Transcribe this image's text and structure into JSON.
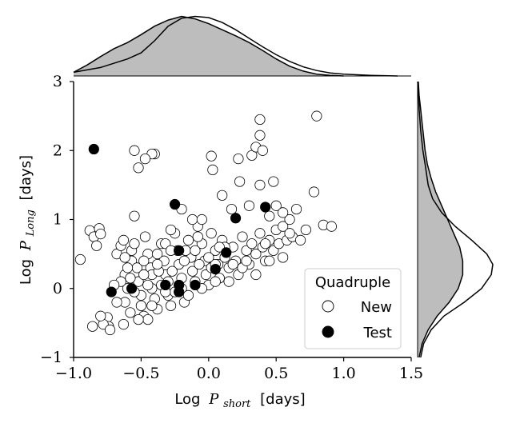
{
  "chart_data": {
    "type": "scatter",
    "xlabel_prefix": "Log",
    "xlabel_var": "P",
    "xlabel_sub": "short",
    "xlabel_unit": "[days]",
    "ylabel_prefix": "Log",
    "ylabel_var": "P",
    "ylabel_sub": "Long",
    "ylabel_unit": "[days]",
    "xlim": [
      -1.0,
      1.5
    ],
    "ylim": [
      -1,
      3
    ],
    "xticks": [
      "−1.0",
      "−0.5",
      "0.0",
      "0.5",
      "1.0",
      "1.5"
    ],
    "yticks": [
      "−1",
      "0",
      "1",
      "2",
      "3"
    ],
    "xtick_values": [
      -1.0,
      -0.5,
      0.0,
      0.5,
      1.0,
      1.5
    ],
    "ytick_values": [
      -1,
      0,
      1,
      2,
      3
    ],
    "legend": {
      "title": "Quadruple",
      "position": "lower-right",
      "entries": [
        {
          "label": "New",
          "marker": "open-circle"
        },
        {
          "label": "Test",
          "marker": "filled-circle"
        }
      ]
    },
    "series": [
      {
        "name": "New",
        "color": "#ffffff",
        "edge": "#000000",
        "points": [
          [
            -0.95,
            0.42
          ],
          [
            -0.88,
            0.84
          ],
          [
            -0.85,
            0.75
          ],
          [
            -0.83,
            0.62
          ],
          [
            -0.81,
            0.87
          ],
          [
            -0.8,
            0.79
          ],
          [
            -0.75,
            -0.42
          ],
          [
            -0.74,
            -0.55
          ],
          [
            -0.78,
            -0.52
          ],
          [
            -0.86,
            -0.55
          ],
          [
            -0.8,
            -0.4
          ],
          [
            -0.73,
            -0.6
          ],
          [
            -0.68,
            0.5
          ],
          [
            -0.65,
            0.62
          ],
          [
            -0.63,
            0.7
          ],
          [
            -0.62,
            0.2
          ],
          [
            -0.6,
            0.0
          ],
          [
            -0.62,
            -0.2
          ],
          [
            -0.63,
            -0.52
          ],
          [
            -0.58,
            -0.35
          ],
          [
            -0.57,
            0.4
          ],
          [
            -0.57,
            0.55
          ],
          [
            -0.55,
            0.65
          ],
          [
            -0.53,
            0.3
          ],
          [
            -0.52,
            0.1
          ],
          [
            -0.5,
            -0.1
          ],
          [
            -0.5,
            -0.25
          ],
          [
            -0.48,
            -0.4
          ],
          [
            -0.55,
            -0.05
          ],
          [
            -0.47,
            0.75
          ],
          [
            -0.45,
            0.5
          ],
          [
            -0.43,
            0.3
          ],
          [
            -0.42,
            0.2
          ],
          [
            -0.42,
            0.0
          ],
          [
            -0.4,
            -0.15
          ],
          [
            -0.38,
            -0.3
          ],
          [
            -0.45,
            -0.45
          ],
          [
            -0.35,
            0.65
          ],
          [
            -0.33,
            0.4
          ],
          [
            -0.32,
            0.2
          ],
          [
            -0.3,
            0.1
          ],
          [
            -0.3,
            -0.1
          ],
          [
            -0.28,
            -0.25
          ],
          [
            -0.25,
            0.8
          ],
          [
            -0.23,
            0.55
          ],
          [
            -0.22,
            0.35
          ],
          [
            -0.2,
            0.15
          ],
          [
            -0.2,
            0.0
          ],
          [
            -0.18,
            -0.2
          ],
          [
            -0.15,
            0.7
          ],
          [
            -0.13,
            0.45
          ],
          [
            -0.12,
            0.25
          ],
          [
            -0.1,
            0.1
          ],
          [
            -0.08,
            0.9
          ],
          [
            -0.05,
            0.65
          ],
          [
            -0.03,
            0.4
          ],
          [
            -0.02,
            0.2
          ],
          [
            0.0,
            0.05
          ],
          [
            0.02,
            0.8
          ],
          [
            0.05,
            0.55
          ],
          [
            0.07,
            0.35
          ],
          [
            0.08,
            0.15
          ],
          [
            0.1,
            0.7
          ],
          [
            0.12,
            0.45
          ],
          [
            0.15,
            0.3
          ],
          [
            0.18,
            0.6
          ],
          [
            0.2,
            0.4
          ],
          [
            0.22,
            0.2
          ],
          [
            0.25,
            0.75
          ],
          [
            0.28,
            0.55
          ],
          [
            0.3,
            0.35
          ],
          [
            0.32,
            0.65
          ],
          [
            0.35,
            0.5
          ],
          [
            0.38,
            0.8
          ],
          [
            0.4,
            0.6
          ],
          [
            0.42,
            0.4
          ],
          [
            0.45,
            0.7
          ],
          [
            0.48,
            0.55
          ],
          [
            0.5,
            0.85
          ],
          [
            0.52,
            0.65
          ],
          [
            0.55,
            0.9
          ],
          [
            0.58,
            0.7
          ],
          [
            0.6,
            1.0
          ],
          [
            0.62,
            0.75
          ],
          [
            0.65,
            1.15
          ],
          [
            0.68,
            0.7
          ],
          [
            0.72,
            0.85
          ],
          [
            0.78,
            1.4
          ],
          [
            0.85,
            0.92
          ],
          [
            0.91,
            0.9
          ],
          [
            -0.4,
            1.95
          ],
          [
            -0.42,
            1.95
          ],
          [
            -0.55,
            2.0
          ],
          [
            -0.52,
            1.75
          ],
          [
            -0.47,
            1.88
          ],
          [
            -0.55,
            1.05
          ],
          [
            0.02,
            1.92
          ],
          [
            0.03,
            1.72
          ],
          [
            0.22,
            1.88
          ],
          [
            0.32,
            1.93
          ],
          [
            0.35,
            2.05
          ],
          [
            0.38,
            2.22
          ],
          [
            0.4,
            2.0
          ],
          [
            0.38,
            2.45
          ],
          [
            0.48,
            1.55
          ],
          [
            0.38,
            1.5
          ],
          [
            0.23,
            1.55
          ],
          [
            0.1,
            1.35
          ],
          [
            0.17,
            1.15
          ],
          [
            0.3,
            1.2
          ],
          [
            0.45,
            1.05
          ],
          [
            0.5,
            1.2
          ],
          [
            0.55,
            1.1
          ],
          [
            0.6,
            0.8
          ],
          [
            0.8,
            2.5
          ],
          [
            -0.2,
            1.15
          ],
          [
            -0.12,
            1.0
          ],
          [
            -0.05,
            1.0
          ],
          [
            -0.28,
            0.85
          ],
          [
            -0.32,
            0.65
          ],
          [
            -0.38,
            0.5
          ],
          [
            -0.37,
            0.25
          ],
          [
            -0.27,
            0.25
          ],
          [
            -0.17,
            0.55
          ],
          [
            -0.07,
            0.35
          ],
          [
            0.02,
            0.3
          ],
          [
            0.05,
            0.1
          ],
          [
            0.15,
            0.1
          ],
          [
            0.25,
            0.3
          ],
          [
            0.35,
            0.2
          ],
          [
            0.45,
            0.4
          ],
          [
            0.55,
            0.45
          ],
          [
            -0.62,
            0.45
          ],
          [
            -0.6,
            0.3
          ],
          [
            -0.65,
            0.1
          ],
          [
            -0.58,
            0.15
          ],
          [
            -0.48,
            0.2
          ],
          [
            -0.45,
            0.05
          ],
          [
            -0.35,
            0.05
          ],
          [
            -0.25,
            -0.05
          ],
          [
            -0.15,
            -0.1
          ],
          [
            -0.05,
            0.0
          ],
          [
            0.05,
            0.35
          ],
          [
            0.12,
            0.6
          ],
          [
            -0.32,
            -0.05
          ],
          [
            -0.42,
            -0.25
          ],
          [
            -0.52,
            -0.45
          ],
          [
            -0.68,
            -0.2
          ],
          [
            -0.7,
            0.05
          ],
          [
            -0.1,
            0.55
          ],
          [
            0.0,
            0.45
          ],
          [
            0.08,
            0.6
          ],
          [
            0.18,
            0.35
          ],
          [
            0.28,
            0.4
          ],
          [
            0.42,
            0.65
          ],
          [
            -0.08,
            0.75
          ],
          [
            -0.18,
            0.4
          ],
          [
            -0.28,
            0.55
          ],
          [
            -0.38,
            0.35
          ],
          [
            -0.48,
            0.4
          ]
        ]
      },
      {
        "name": "Test",
        "color": "#000000",
        "edge": "#000000",
        "points": [
          [
            -0.85,
            2.02
          ],
          [
            -0.25,
            1.22
          ],
          [
            -0.22,
            0.55
          ],
          [
            0.13,
            0.52
          ],
          [
            0.05,
            0.28
          ],
          [
            0.42,
            1.18
          ],
          [
            0.2,
            1.02
          ],
          [
            -0.32,
            0.05
          ],
          [
            -0.57,
            0.0
          ],
          [
            -0.72,
            -0.05
          ],
          [
            -0.22,
            0.05
          ],
          [
            -0.22,
            -0.05
          ],
          [
            -0.1,
            0.05
          ]
        ]
      }
    ],
    "marginal_x": {
      "type": "kde",
      "new_curve": [
        [
          -1.0,
          0.06
        ],
        [
          -0.8,
          0.14
        ],
        [
          -0.6,
          0.28
        ],
        [
          -0.5,
          0.38
        ],
        [
          -0.4,
          0.58
        ],
        [
          -0.3,
          0.82
        ],
        [
          -0.2,
          0.95
        ],
        [
          -0.1,
          0.98
        ],
        [
          0.0,
          0.96
        ],
        [
          0.1,
          0.88
        ],
        [
          0.2,
          0.76
        ],
        [
          0.3,
          0.62
        ],
        [
          0.4,
          0.48
        ],
        [
          0.5,
          0.35
        ],
        [
          0.6,
          0.24
        ],
        [
          0.7,
          0.15
        ],
        [
          0.8,
          0.09
        ],
        [
          0.9,
          0.05
        ],
        [
          1.0,
          0.03
        ],
        [
          1.2,
          0.01
        ],
        [
          1.4,
          0.0
        ]
      ],
      "test_curve": [
        [
          -1.0,
          0.06
        ],
        [
          -0.9,
          0.18
        ],
        [
          -0.8,
          0.32
        ],
        [
          -0.7,
          0.45
        ],
        [
          -0.6,
          0.55
        ],
        [
          -0.5,
          0.68
        ],
        [
          -0.4,
          0.82
        ],
        [
          -0.3,
          0.92
        ],
        [
          -0.2,
          0.98
        ],
        [
          -0.1,
          0.94
        ],
        [
          0.0,
          0.86
        ],
        [
          0.1,
          0.76
        ],
        [
          0.2,
          0.66
        ],
        [
          0.3,
          0.55
        ],
        [
          0.4,
          0.42
        ],
        [
          0.5,
          0.28
        ],
        [
          0.6,
          0.16
        ],
        [
          0.7,
          0.08
        ],
        [
          0.8,
          0.03
        ],
        [
          0.9,
          0.01
        ],
        [
          1.0,
          0.0
        ]
      ]
    },
    "marginal_y": {
      "type": "kde",
      "new_curve": [
        [
          -1.0,
          0.04
        ],
        [
          -0.8,
          0.08
        ],
        [
          -0.6,
          0.18
        ],
        [
          -0.4,
          0.35
        ],
        [
          -0.2,
          0.62
        ],
        [
          0.0,
          0.85
        ],
        [
          0.2,
          0.98
        ],
        [
          0.35,
          1.0
        ],
        [
          0.5,
          0.92
        ],
        [
          0.7,
          0.72
        ],
        [
          0.9,
          0.5
        ],
        [
          1.1,
          0.32
        ],
        [
          1.3,
          0.2
        ],
        [
          1.5,
          0.14
        ],
        [
          1.8,
          0.1
        ],
        [
          2.0,
          0.07
        ],
        [
          2.3,
          0.04
        ],
        [
          2.6,
          0.02
        ],
        [
          2.9,
          0.01
        ],
        [
          3.0,
          0.0
        ]
      ],
      "test_curve": [
        [
          -1.0,
          0.02
        ],
        [
          -0.8,
          0.06
        ],
        [
          -0.6,
          0.14
        ],
        [
          -0.4,
          0.26
        ],
        [
          -0.2,
          0.42
        ],
        [
          0.0,
          0.54
        ],
        [
          0.2,
          0.6
        ],
        [
          0.4,
          0.6
        ],
        [
          0.6,
          0.56
        ],
        [
          0.8,
          0.48
        ],
        [
          1.0,
          0.4
        ],
        [
          1.2,
          0.32
        ],
        [
          1.4,
          0.24
        ],
        [
          1.6,
          0.18
        ],
        [
          1.8,
          0.13
        ],
        [
          2.0,
          0.1
        ],
        [
          2.2,
          0.08
        ],
        [
          2.4,
          0.06
        ],
        [
          2.6,
          0.04
        ],
        [
          2.8,
          0.02
        ],
        [
          3.0,
          0.01
        ]
      ]
    }
  }
}
